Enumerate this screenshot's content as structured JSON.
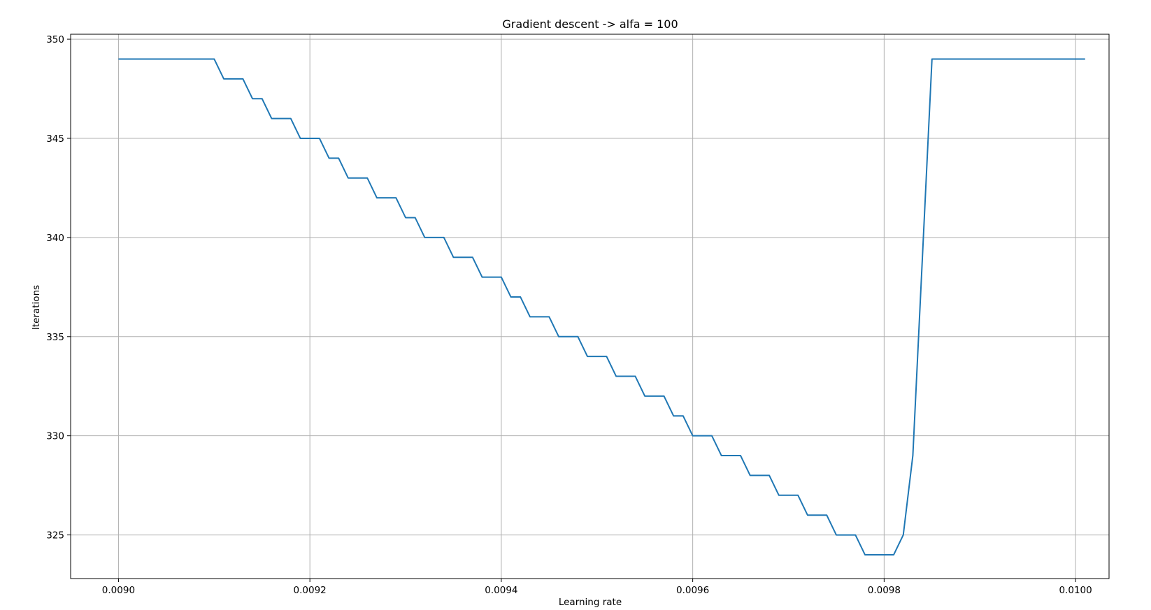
{
  "chart_data": {
    "type": "line",
    "title": "Gradient descent -> alfa = 100",
    "xlabel": "Learning rate",
    "ylabel": "Iterations",
    "xlim": [
      0.00895,
      0.010035
    ],
    "ylim": [
      322.8,
      350.25
    ],
    "xticks": [
      "0.0090",
      "0.0092",
      "0.0094",
      "0.0096",
      "0.0098",
      "0.0100"
    ],
    "yticks": [
      "325",
      "330",
      "335",
      "340",
      "345",
      "350"
    ],
    "grid": true,
    "series": [
      {
        "color": "#1f77b4",
        "x_start": 0.009,
        "x_step": 1e-05,
        "values": [
          349,
          349,
          349,
          349,
          349,
          349,
          349,
          349,
          349,
          349,
          349,
          348,
          348,
          348,
          347,
          347,
          346,
          346,
          346,
          345,
          345,
          345,
          344,
          344,
          343,
          343,
          343,
          342,
          342,
          342,
          341,
          341,
          340,
          340,
          340,
          339,
          339,
          339,
          338,
          338,
          338,
          337,
          337,
          336,
          336,
          336,
          335,
          335,
          335,
          334,
          334,
          334,
          333,
          333,
          333,
          332,
          332,
          332,
          331,
          331,
          330,
          330,
          330,
          329,
          329,
          329,
          328,
          328,
          328,
          327,
          327,
          327,
          326,
          326,
          326,
          325,
          325,
          325,
          324,
          324,
          324,
          324,
          325,
          329,
          339,
          349,
          349,
          349,
          349,
          349,
          349,
          349,
          349,
          349,
          349,
          349,
          349,
          349,
          349,
          349,
          349,
          349
        ]
      }
    ]
  }
}
